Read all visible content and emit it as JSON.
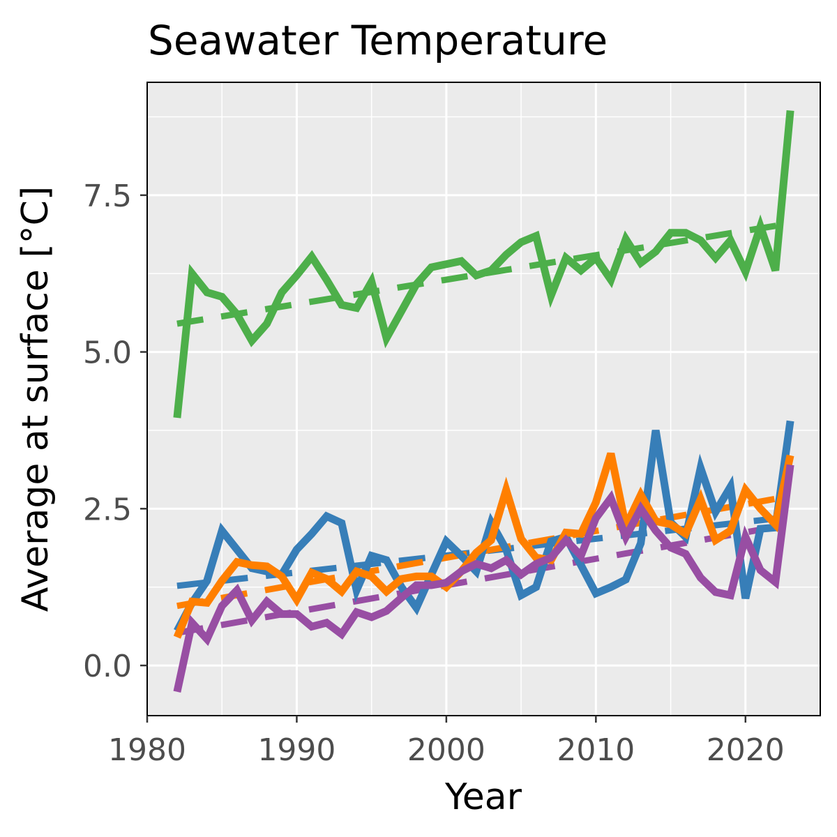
{
  "chart_data": {
    "type": "line",
    "title": "Seawater Temperature",
    "xlabel": "Year",
    "ylabel": "Average at surface [°C]",
    "xlim": [
      1980,
      2025
    ],
    "ylim": [
      -0.8,
      9.3
    ],
    "xticks": [
      1980,
      1990,
      2000,
      2010,
      2020
    ],
    "xtick_labels": [
      "1980",
      "1990",
      "2000",
      "2010",
      "2020"
    ],
    "yticks": [
      0.0,
      2.5,
      5.0,
      7.5
    ],
    "ytick_labels": [
      "0.0",
      "2.5",
      "5.0",
      "7.5"
    ],
    "grid": true,
    "legend": "none",
    "x": [
      1982,
      1983,
      1984,
      1985,
      1986,
      1987,
      1988,
      1989,
      1990,
      1991,
      1992,
      1993,
      1994,
      1995,
      1996,
      1997,
      1998,
      1999,
      2000,
      2001,
      2002,
      2003,
      2004,
      2005,
      2006,
      2007,
      2008,
      2009,
      2010,
      2011,
      2012,
      2013,
      2014,
      2015,
      2016,
      2017,
      2018,
      2019,
      2020,
      2021,
      2022,
      2023
    ],
    "series": [
      {
        "color": "#4daf4a",
        "values": [
          3.95,
          6.25,
          5.95,
          5.88,
          5.6,
          5.18,
          5.45,
          5.95,
          6.22,
          6.52,
          6.15,
          5.75,
          5.7,
          6.12,
          5.22,
          5.65,
          6.08,
          6.35,
          6.4,
          6.45,
          6.22,
          6.3,
          6.55,
          6.75,
          6.85,
          5.9,
          6.5,
          6.3,
          6.5,
          6.15,
          6.8,
          6.42,
          6.6,
          6.9,
          6.9,
          6.78,
          6.5,
          6.78,
          6.28,
          7.0,
          6.3,
          8.85
        ],
        "trend": [
          5.45,
          7.05
        ]
      },
      {
        "color": "#377eb8",
        "values": [
          0.55,
          1.0,
          1.35,
          2.15,
          1.85,
          1.55,
          1.5,
          1.45,
          1.85,
          2.1,
          2.38,
          2.27,
          1.2,
          1.75,
          1.68,
          1.25,
          0.92,
          1.45,
          1.98,
          1.75,
          1.5,
          2.28,
          1.85,
          1.12,
          1.25,
          1.98,
          2.05,
          1.6,
          1.15,
          1.25,
          1.37,
          1.95,
          3.75,
          2.28,
          2.05,
          3.15,
          2.45,
          2.85,
          1.07,
          2.18,
          2.2,
          3.9
        ],
        "trend": [
          1.27,
          2.37
        ]
      },
      {
        "color": "#ff7f00",
        "values": [
          0.45,
          1.02,
          1.0,
          1.35,
          1.65,
          1.6,
          1.58,
          1.42,
          1.05,
          1.48,
          1.38,
          1.18,
          1.5,
          1.42,
          1.18,
          1.38,
          1.42,
          1.42,
          1.25,
          1.5,
          1.8,
          2.0,
          2.8,
          2.02,
          1.72,
          1.68,
          2.12,
          2.1,
          2.6,
          3.38,
          2.22,
          2.72,
          2.3,
          2.25,
          2.1,
          2.65,
          2.0,
          2.15,
          2.8,
          2.5,
          2.25,
          3.35
        ],
        "trend": [
          0.95,
          2.7
        ]
      },
      {
        "color": "#984ea3",
        "values": [
          -0.42,
          0.68,
          0.42,
          0.95,
          1.2,
          0.72,
          1.02,
          0.82,
          0.82,
          0.62,
          0.68,
          0.5,
          0.85,
          0.77,
          0.87,
          1.08,
          1.28,
          1.28,
          1.32,
          1.5,
          1.62,
          1.55,
          1.68,
          1.45,
          1.62,
          1.72,
          2.0,
          1.75,
          2.35,
          2.67,
          2.05,
          2.5,
          2.15,
          1.88,
          1.78,
          1.4,
          1.17,
          1.12,
          2.05,
          1.52,
          1.33,
          3.2
        ],
        "trend": [
          0.52,
          2.25
        ]
      }
    ]
  }
}
